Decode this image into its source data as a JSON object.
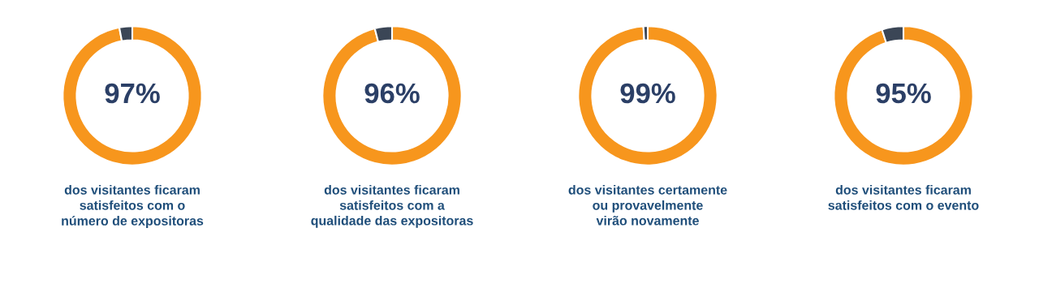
{
  "chart_data": [
    {
      "type": "donut",
      "categories": [
        null,
        null
      ],
      "values": [
        97,
        3
      ],
      "colors": [
        "#f7961d",
        "#3b4656"
      ],
      "annotations": [
        "97%",
        "dos visitantes ficaram\nsatisfeitos com o\nnúmero de expositoras"
      ]
    },
    {
      "type": "donut",
      "categories": [
        null,
        null
      ],
      "values": [
        96,
        4
      ],
      "colors": [
        "#f7961d",
        "#3b4656"
      ],
      "annotations": [
        "96%",
        "dos visitantes ficaram\nsatisfeitos com a\nqualidade das expositoras"
      ]
    },
    {
      "type": "donut",
      "categories": [
        null,
        null
      ],
      "values": [
        99,
        1
      ],
      "colors": [
        "#f7961d",
        "#3b4656"
      ],
      "annotations": [
        "99%",
        "dos visitantes certamente\nou provavelmente\nvirão novamente"
      ]
    },
    {
      "type": "donut",
      "categories": [
        null,
        null
      ],
      "values": [
        95,
        5
      ],
      "colors": [
        "#f7961d",
        "#3b4656"
      ],
      "annotations": [
        "95%",
        "dos visitantes ficaram\nsatisfeitos com o evento"
      ]
    }
  ]
}
